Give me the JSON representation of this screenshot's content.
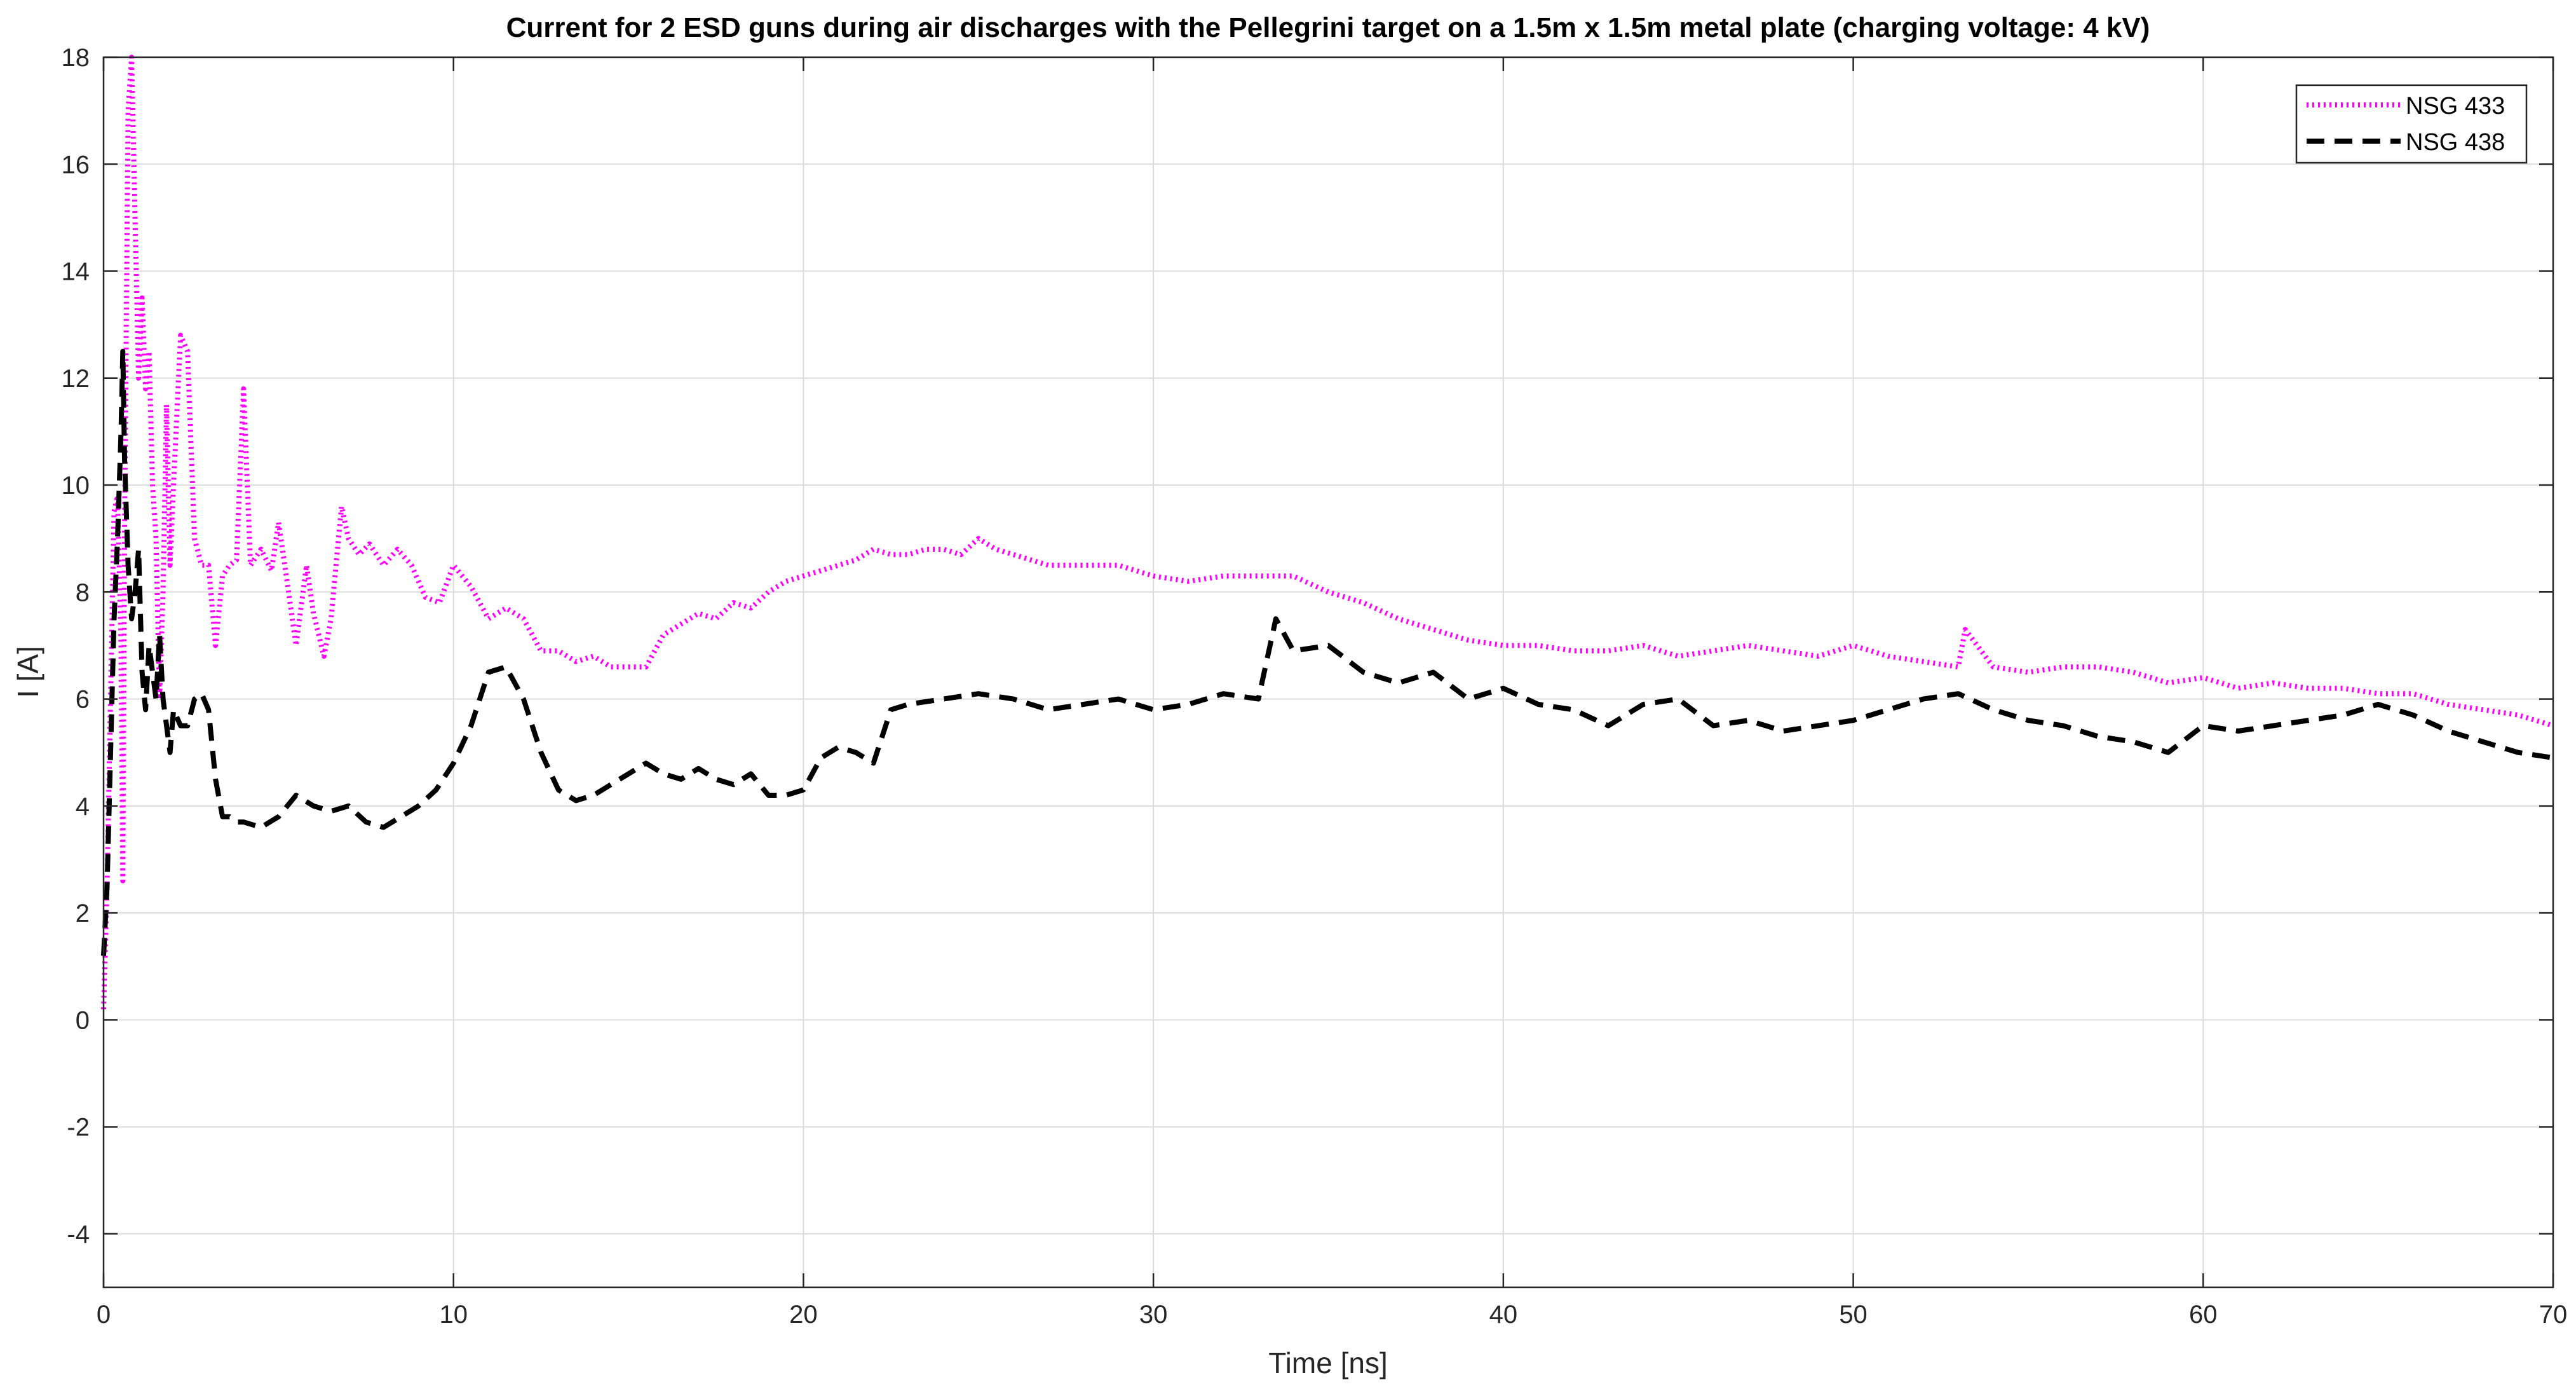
{
  "chart_data": {
    "type": "line",
    "title": "Current for 2 ESD guns during air discharges with the Pellegrini target on a 1.5m x 1.5m metal plate (charging voltage: 4 kV)",
    "xlabel": "Time [ns]",
    "ylabel": "I [A]",
    "xlim": [
      0,
      70
    ],
    "ylim": [
      -5,
      18
    ],
    "xticks": [
      "0",
      "10",
      "20",
      "30",
      "40",
      "50",
      "60",
      "70"
    ],
    "yticks": [
      "-4",
      "-2",
      "0",
      "2",
      "4",
      "6",
      "8",
      "10",
      "12",
      "14",
      "16",
      "18"
    ],
    "grid": true,
    "legend_position": "top-right",
    "series": [
      {
        "name": "NSG 433",
        "color": "#ff00ff",
        "style": "dotted",
        "x": [
          0,
          0.1,
          0.2,
          0.3,
          0.4,
          0.5,
          0.55,
          0.6,
          0.7,
          0.8,
          0.9,
          1.0,
          1.1,
          1.2,
          1.3,
          1.4,
          1.5,
          1.6,
          1.7,
          1.8,
          1.9,
          2.0,
          2.2,
          2.4,
          2.6,
          2.8,
          3.0,
          3.2,
          3.4,
          3.6,
          3.8,
          4.0,
          4.2,
          4.5,
          4.8,
          5.0,
          5.2,
          5.5,
          5.8,
          6.0,
          6.3,
          6.5,
          6.8,
          7.0,
          7.3,
          7.6,
          8.0,
          8.4,
          8.8,
          9.2,
          9.6,
          10.0,
          10.5,
          11.0,
          11.5,
          12.0,
          12.5,
          13.0,
          13.5,
          14.0,
          14.5,
          15.0,
          15.5,
          16.0,
          16.5,
          17.0,
          17.5,
          18.0,
          18.5,
          19.0,
          19.5,
          20.0,
          20.5,
          21.0,
          21.5,
          22.0,
          22.5,
          23.0,
          23.5,
          24.0,
          24.5,
          25.0,
          25.5,
          26.0,
          26.5,
          27.0,
          28.0,
          29.0,
          30.0,
          31.0,
          32.0,
          33.0,
          34.0,
          35.0,
          36.0,
          37.0,
          38.0,
          39.0,
          40.0,
          41.0,
          42.0,
          43.0,
          44.0,
          45.0,
          46.0,
          47.0,
          48.0,
          49.0,
          50.0,
          51.0,
          52.0,
          53.0,
          53.2,
          54.0,
          55.0,
          56.0,
          57.0,
          58.0,
          59.0,
          60.0,
          61.0,
          62.0,
          63.0,
          64.0,
          65.0,
          66.0,
          67.0,
          68.0,
          69.0,
          70.0
        ],
        "y": [
          0.2,
          2.5,
          6.0,
          9.5,
          9.8,
          7.0,
          2.6,
          9.0,
          17.0,
          18.0,
          15.0,
          12.0,
          13.5,
          11.8,
          12.5,
          10.0,
          9.0,
          6.0,
          8.0,
          11.5,
          8.5,
          10.0,
          12.8,
          12.5,
          9.0,
          8.5,
          8.5,
          7.0,
          8.3,
          8.5,
          8.6,
          11.8,
          8.5,
          8.8,
          8.4,
          9.3,
          8.4,
          7.0,
          8.5,
          7.6,
          6.8,
          7.5,
          9.6,
          9.0,
          8.7,
          8.9,
          8.5,
          8.8,
          8.5,
          7.9,
          7.8,
          8.5,
          8.1,
          7.5,
          7.7,
          7.5,
          6.9,
          6.9,
          6.7,
          6.8,
          6.6,
          6.6,
          6.6,
          7.2,
          7.4,
          7.6,
          7.5,
          7.8,
          7.7,
          8.0,
          8.2,
          8.3,
          8.4,
          8.5,
          8.6,
          8.8,
          8.7,
          8.7,
          8.8,
          8.8,
          8.7,
          9.0,
          8.8,
          8.7,
          8.6,
          8.5,
          8.5,
          8.5,
          8.3,
          8.2,
          8.3,
          8.3,
          8.3,
          8.0,
          7.8,
          7.5,
          7.3,
          7.1,
          7.0,
          7.0,
          6.9,
          6.9,
          7.0,
          6.8,
          6.9,
          7.0,
          6.9,
          6.8,
          7.0,
          6.8,
          6.7,
          6.6,
          7.3,
          6.6,
          6.5,
          6.6,
          6.6,
          6.5,
          6.3,
          6.4,
          6.2,
          6.3,
          6.2,
          6.2,
          6.1,
          6.1,
          5.9,
          5.8,
          5.7,
          5.5
        ]
      },
      {
        "name": "NSG 438",
        "color": "#000000",
        "style": "dashed",
        "x": [
          0,
          0.1,
          0.2,
          0.3,
          0.4,
          0.5,
          0.55,
          0.6,
          0.7,
          0.8,
          0.9,
          1.0,
          1.1,
          1.2,
          1.3,
          1.4,
          1.5,
          1.6,
          1.7,
          1.8,
          1.9,
          2.0,
          2.2,
          2.4,
          2.6,
          2.8,
          3.0,
          3.2,
          3.4,
          3.6,
          3.8,
          4.0,
          4.5,
          5.0,
          5.5,
          6.0,
          6.5,
          7.0,
          7.5,
          8.0,
          8.5,
          9.0,
          9.5,
          10.0,
          10.5,
          11.0,
          11.5,
          12.0,
          12.5,
          13.0,
          13.5,
          14.0,
          14.5,
          15.0,
          15.5,
          16.0,
          16.5,
          17.0,
          17.5,
          18.0,
          18.5,
          19.0,
          19.5,
          20.0,
          20.5,
          21.0,
          21.5,
          22.0,
          22.5,
          23.0,
          24.0,
          25.0,
          26.0,
          27.0,
          28.0,
          29.0,
          30.0,
          31.0,
          32.0,
          33.0,
          33.5,
          34.0,
          35.0,
          36.0,
          37.0,
          38.0,
          39.0,
          40.0,
          41.0,
          42.0,
          43.0,
          44.0,
          45.0,
          46.0,
          47.0,
          48.0,
          49.0,
          50.0,
          51.0,
          52.0,
          53.0,
          54.0,
          55.0,
          56.0,
          57.0,
          58.0,
          59.0,
          60.0,
          61.0,
          62.0,
          63.0,
          64.0,
          65.0,
          66.0,
          67.0,
          68.0,
          69.0,
          70.0
        ],
        "y": [
          1.2,
          2.5,
          5.0,
          7.5,
          9.0,
          11.0,
          12.5,
          10.5,
          8.5,
          7.5,
          8.0,
          8.8,
          6.5,
          5.8,
          7.0,
          6.5,
          6.0,
          7.2,
          6.0,
          5.5,
          5.0,
          5.8,
          5.5,
          5.5,
          6.0,
          6.1,
          5.8,
          4.5,
          3.8,
          3.8,
          3.7,
          3.7,
          3.6,
          3.8,
          4.2,
          4.0,
          3.9,
          4.0,
          3.7,
          3.6,
          3.8,
          4.0,
          4.3,
          4.8,
          5.5,
          6.5,
          6.6,
          6.0,
          5.0,
          4.3,
          4.1,
          4.2,
          4.4,
          4.6,
          4.8,
          4.6,
          4.5,
          4.7,
          4.5,
          4.4,
          4.6,
          4.2,
          4.2,
          4.3,
          4.9,
          5.1,
          5.0,
          4.8,
          5.8,
          5.9,
          6.0,
          6.1,
          6.0,
          5.8,
          5.9,
          6.0,
          5.8,
          5.9,
          6.1,
          6.0,
          7.5,
          6.9,
          7.0,
          6.5,
          6.3,
          6.5,
          6.0,
          6.2,
          5.9,
          5.8,
          5.5,
          5.9,
          6.0,
          5.5,
          5.6,
          5.4,
          5.5,
          5.6,
          5.8,
          6.0,
          6.1,
          5.8,
          5.6,
          5.5,
          5.3,
          5.2,
          5.0,
          5.5,
          5.4,
          5.5,
          5.6,
          5.7,
          5.9,
          5.7,
          5.4,
          5.2,
          5.0,
          4.9
        ]
      }
    ]
  }
}
